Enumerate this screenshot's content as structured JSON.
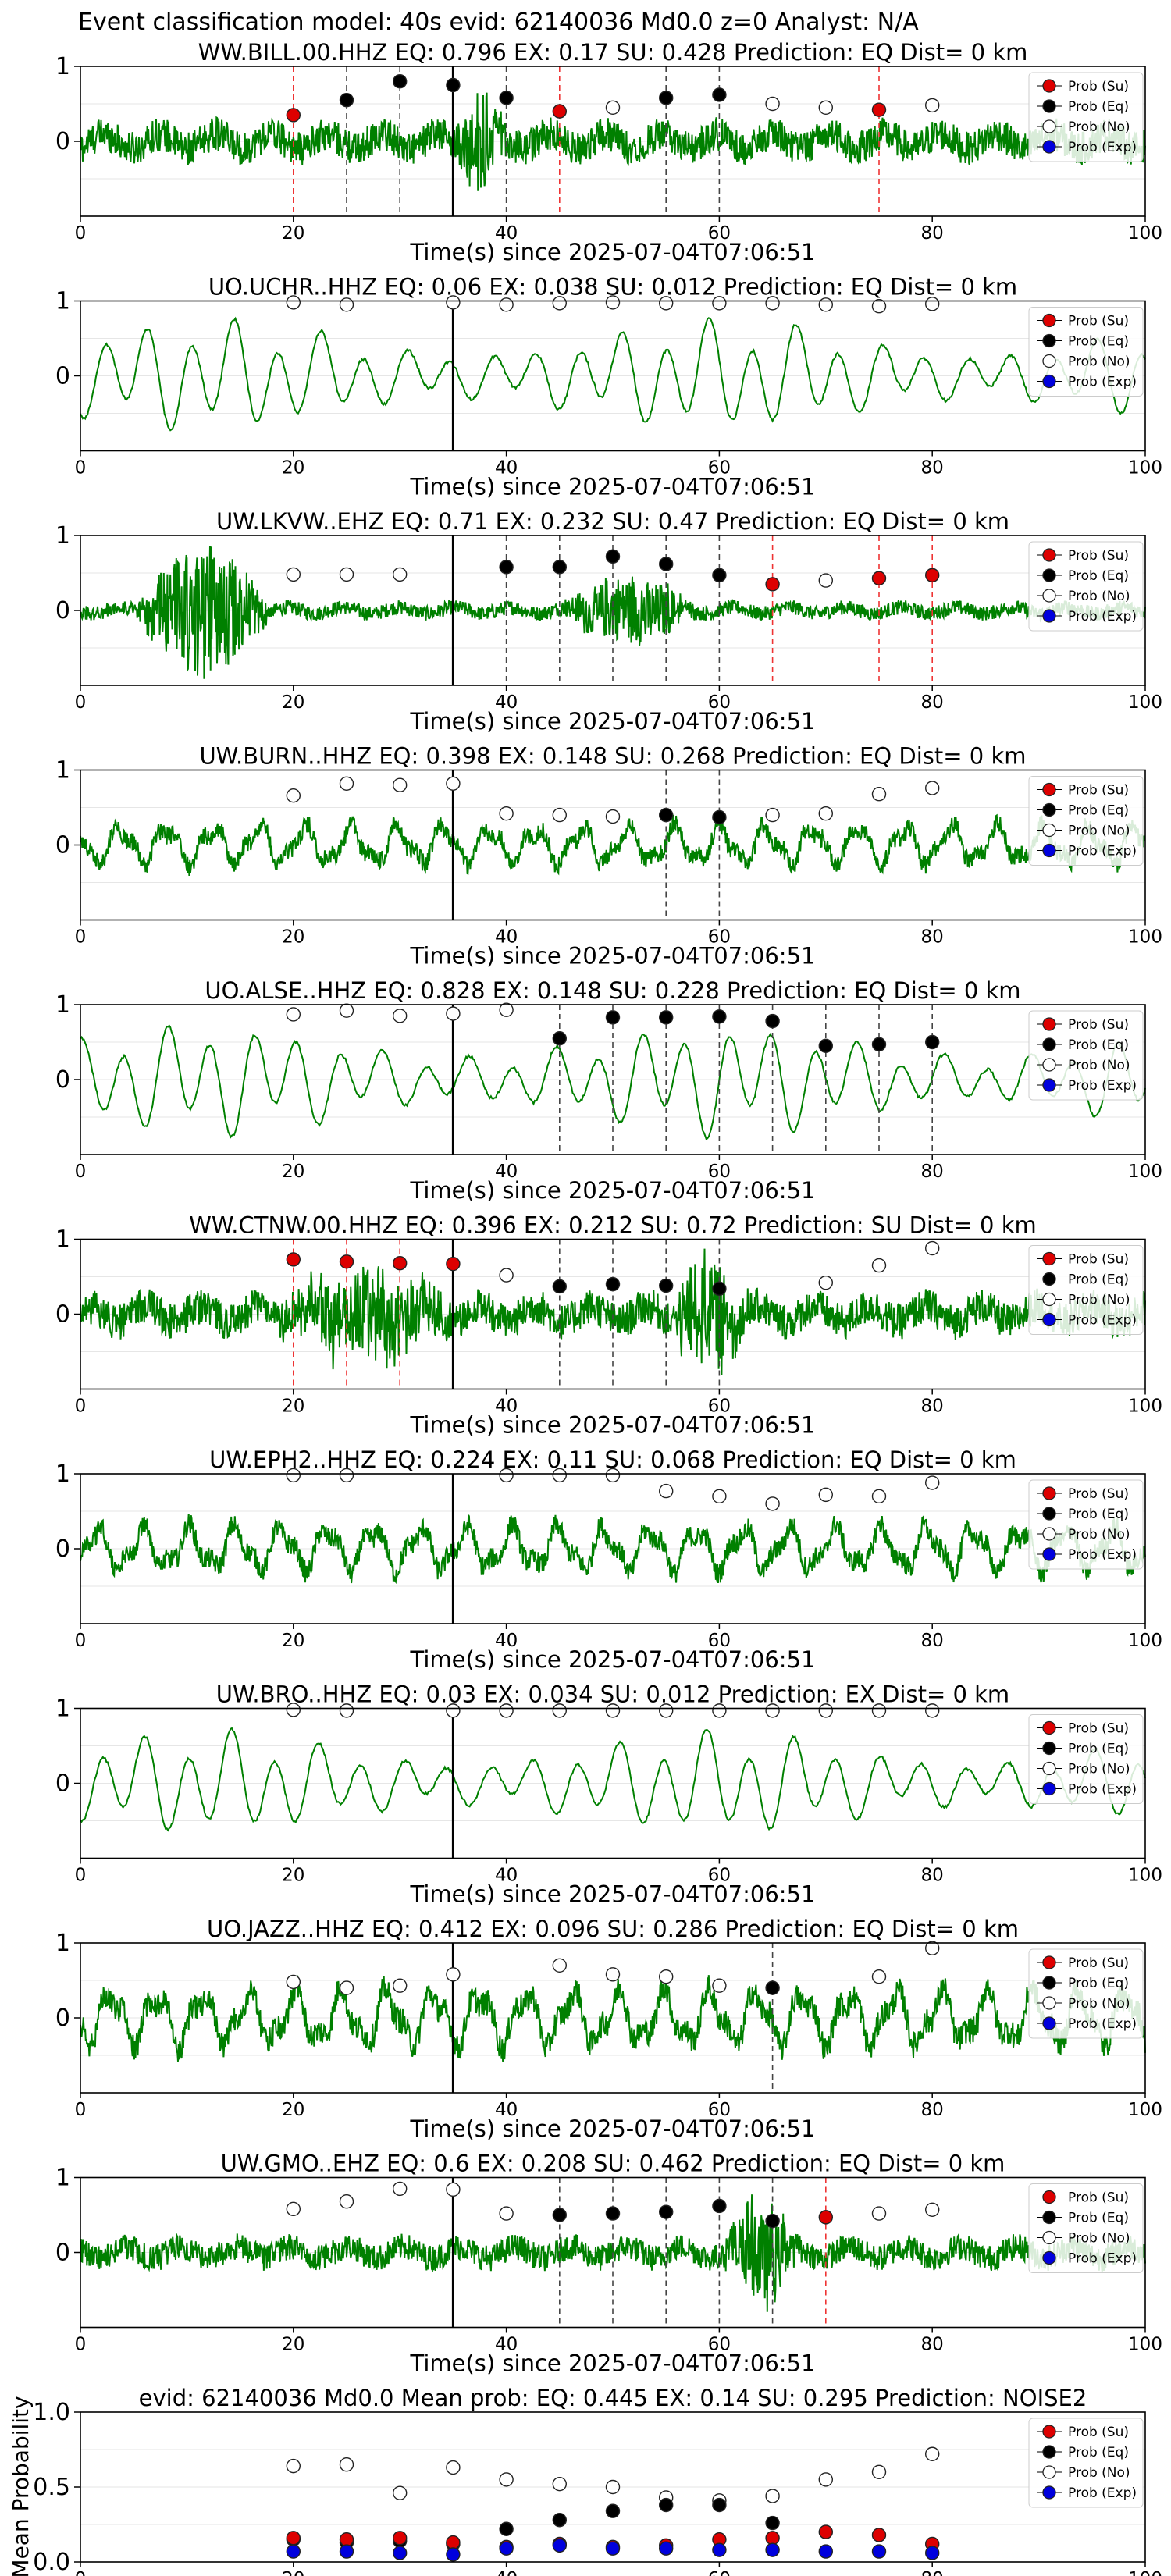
{
  "header": {
    "title": "Event classification model: 40s evid: 62140036 Md0.0 z=0 Analyst: N/A"
  },
  "legend": {
    "items": [
      "Prob (Su)",
      "Prob (Eq)",
      "Prob (No)",
      "Prob (Exp)"
    ]
  },
  "colors": {
    "su": "#dd0000",
    "eq": "#000000",
    "no": "#ffffff",
    "exp": "#0000dd",
    "trace": "#008000"
  },
  "xlabel": "Time(s) since 2025-07-04T07:06:51",
  "xticks": [
    "0",
    "20",
    "40",
    "60",
    "80",
    "100"
  ],
  "yticks_trace": [
    "1",
    "0"
  ],
  "chart_data": [
    {
      "type": "line",
      "title": "WW.BILL.00.HHZ   EQ: 0.796  EX: 0.17  SU: 0.428   Prediction: EQ    Dist= 0 km",
      "xlim": [
        0,
        100
      ],
      "ylim": [
        -1,
        1
      ],
      "pick": 35,
      "points": [
        {
          "x": 20,
          "y": 0.35,
          "c": "su"
        },
        {
          "x": 25,
          "y": 0.55,
          "c": "eq"
        },
        {
          "x": 30,
          "y": 0.8,
          "c": "eq"
        },
        {
          "x": 35,
          "y": 0.75,
          "c": "eq"
        },
        {
          "x": 40,
          "y": 0.58,
          "c": "eq"
        },
        {
          "x": 45,
          "y": 0.4,
          "c": "su"
        },
        {
          "x": 50,
          "y": 0.45,
          "c": "no"
        },
        {
          "x": 55,
          "y": 0.58,
          "c": "eq"
        },
        {
          "x": 60,
          "y": 0.62,
          "c": "eq"
        },
        {
          "x": 65,
          "y": 0.5,
          "c": "no"
        },
        {
          "x": 70,
          "y": 0.45,
          "c": "no"
        },
        {
          "x": 75,
          "y": 0.42,
          "c": "su"
        },
        {
          "x": 80,
          "y": 0.48,
          "c": "no"
        }
      ],
      "waveform": {
        "style": "noisy",
        "amp": 0.28,
        "burst": [
          35,
          40,
          0.6
        ]
      }
    },
    {
      "type": "line",
      "title": "UO.UCHR..HHZ   EQ: 0.06  EX: 0.038  SU: 0.012   Prediction: EQ    Dist= 0 km",
      "xlim": [
        0,
        100
      ],
      "ylim": [
        -1,
        1
      ],
      "pick": 35,
      "points": [
        {
          "x": 20,
          "y": 0.98,
          "c": "no"
        },
        {
          "x": 25,
          "y": 0.95,
          "c": "no"
        },
        {
          "x": 35,
          "y": 0.98,
          "c": "no"
        },
        {
          "x": 40,
          "y": 0.95,
          "c": "no"
        },
        {
          "x": 45,
          "y": 0.97,
          "c": "no"
        },
        {
          "x": 50,
          "y": 0.98,
          "c": "no"
        },
        {
          "x": 55,
          "y": 0.97,
          "c": "no"
        },
        {
          "x": 60,
          "y": 0.97,
          "c": "no"
        },
        {
          "x": 65,
          "y": 0.97,
          "c": "no"
        },
        {
          "x": 70,
          "y": 0.95,
          "c": "no"
        },
        {
          "x": 75,
          "y": 0.93,
          "c": "no"
        },
        {
          "x": 80,
          "y": 0.96,
          "c": "no"
        }
      ],
      "waveform": {
        "style": "smooth",
        "amp": 0.75
      }
    },
    {
      "type": "line",
      "title": "UW.LKVW..EHZ   EQ: 0.71  EX: 0.232  SU: 0.47   Prediction: EQ    Dist= 0 km",
      "xlim": [
        0,
        100
      ],
      "ylim": [
        -1,
        1
      ],
      "pick": 35,
      "points": [
        {
          "x": 20,
          "y": 0.48,
          "c": "no"
        },
        {
          "x": 25,
          "y": 0.48,
          "c": "no"
        },
        {
          "x": 30,
          "y": 0.48,
          "c": "no"
        },
        {
          "x": 40,
          "y": 0.58,
          "c": "eq"
        },
        {
          "x": 45,
          "y": 0.58,
          "c": "eq"
        },
        {
          "x": 50,
          "y": 0.72,
          "c": "eq"
        },
        {
          "x": 55,
          "y": 0.62,
          "c": "eq"
        },
        {
          "x": 60,
          "y": 0.47,
          "c": "eq"
        },
        {
          "x": 65,
          "y": 0.35,
          "c": "su"
        },
        {
          "x": 70,
          "y": 0.4,
          "c": "no"
        },
        {
          "x": 75,
          "y": 0.43,
          "c": "su"
        },
        {
          "x": 80,
          "y": 0.47,
          "c": "su"
        }
      ],
      "waveform": {
        "style": "noisy",
        "amp": 0.12,
        "burst": [
          5,
          18,
          0.9
        ],
        "burst2": [
          45,
          58,
          0.45
        ]
      }
    },
    {
      "type": "line",
      "title": "UW.BURN..HHZ   EQ: 0.398  EX: 0.148  SU: 0.268   Prediction: EQ    Dist= 0 km",
      "xlim": [
        0,
        100
      ],
      "ylim": [
        -1,
        1
      ],
      "pick": 35,
      "points": [
        {
          "x": 20,
          "y": 0.66,
          "c": "no"
        },
        {
          "x": 25,
          "y": 0.82,
          "c": "no"
        },
        {
          "x": 30,
          "y": 0.8,
          "c": "no"
        },
        {
          "x": 35,
          "y": 0.82,
          "c": "no"
        },
        {
          "x": 40,
          "y": 0.42,
          "c": "no"
        },
        {
          "x": 45,
          "y": 0.4,
          "c": "no"
        },
        {
          "x": 50,
          "y": 0.38,
          "c": "no"
        },
        {
          "x": 55,
          "y": 0.4,
          "c": "eq"
        },
        {
          "x": 60,
          "y": 0.37,
          "c": "eq"
        },
        {
          "x": 65,
          "y": 0.4,
          "c": "no"
        },
        {
          "x": 70,
          "y": 0.42,
          "c": "no"
        },
        {
          "x": 75,
          "y": 0.68,
          "c": "no"
        },
        {
          "x": 80,
          "y": 0.76,
          "c": "no"
        }
      ],
      "waveform": {
        "style": "mixed",
        "amp": 0.35
      }
    },
    {
      "type": "line",
      "title": "UO.ALSE..HHZ   EQ: 0.828  EX: 0.148  SU: 0.228   Prediction: EQ    Dist= 0 km",
      "xlim": [
        0,
        100
      ],
      "ylim": [
        -1,
        1
      ],
      "pick": 35,
      "points": [
        {
          "x": 20,
          "y": 0.87,
          "c": "no"
        },
        {
          "x": 25,
          "y": 0.92,
          "c": "no"
        },
        {
          "x": 30,
          "y": 0.85,
          "c": "no"
        },
        {
          "x": 35,
          "y": 0.88,
          "c": "no"
        },
        {
          "x": 40,
          "y": 0.93,
          "c": "no"
        },
        {
          "x": 45,
          "y": 0.55,
          "c": "eq"
        },
        {
          "x": 50,
          "y": 0.83,
          "c": "eq"
        },
        {
          "x": 55,
          "y": 0.83,
          "c": "eq"
        },
        {
          "x": 60,
          "y": 0.84,
          "c": "eq"
        },
        {
          "x": 65,
          "y": 0.78,
          "c": "eq"
        },
        {
          "x": 70,
          "y": 0.45,
          "c": "eq"
        },
        {
          "x": 75,
          "y": 0.47,
          "c": "eq"
        },
        {
          "x": 80,
          "y": 0.5,
          "c": "eq"
        }
      ],
      "waveform": {
        "style": "smooth",
        "amp": 0.75
      }
    },
    {
      "type": "line",
      "title": "WW.CTNW.00.HHZ   EQ: 0.396  EX: 0.212  SU: 0.72   Prediction: SU    Dist= 0 km",
      "xlim": [
        0,
        100
      ],
      "ylim": [
        -1,
        1
      ],
      "pick": 35,
      "points": [
        {
          "x": 20,
          "y": 0.73,
          "c": "su"
        },
        {
          "x": 25,
          "y": 0.7,
          "c": "su"
        },
        {
          "x": 30,
          "y": 0.68,
          "c": "su"
        },
        {
          "x": 35,
          "y": 0.67,
          "c": "su"
        },
        {
          "x": 40,
          "y": 0.52,
          "c": "no"
        },
        {
          "x": 45,
          "y": 0.37,
          "c": "eq"
        },
        {
          "x": 50,
          "y": 0.4,
          "c": "eq"
        },
        {
          "x": 55,
          "y": 0.38,
          "c": "eq"
        },
        {
          "x": 60,
          "y": 0.34,
          "c": "eq"
        },
        {
          "x": 70,
          "y": 0.42,
          "c": "no"
        },
        {
          "x": 75,
          "y": 0.65,
          "c": "no"
        },
        {
          "x": 80,
          "y": 0.88,
          "c": "no"
        }
      ],
      "waveform": {
        "style": "noisy",
        "amp": 0.3,
        "burst": [
          18,
          35,
          0.55
        ],
        "burst2": [
          55,
          63,
          0.7
        ]
      }
    },
    {
      "type": "line",
      "title": "UW.EPH2..HHZ   EQ: 0.224  EX: 0.11  SU: 0.068   Prediction: EQ    Dist= 0 km",
      "xlim": [
        0,
        100
      ],
      "ylim": [
        -1,
        1
      ],
      "pick": 35,
      "points": [
        {
          "x": 20,
          "y": 0.98,
          "c": "no"
        },
        {
          "x": 25,
          "y": 0.98,
          "c": "no"
        },
        {
          "x": 40,
          "y": 0.98,
          "c": "no"
        },
        {
          "x": 45,
          "y": 0.98,
          "c": "no"
        },
        {
          "x": 50,
          "y": 0.98,
          "c": "no"
        },
        {
          "x": 55,
          "y": 0.77,
          "c": "no"
        },
        {
          "x": 60,
          "y": 0.7,
          "c": "no"
        },
        {
          "x": 65,
          "y": 0.6,
          "c": "no"
        },
        {
          "x": 70,
          "y": 0.72,
          "c": "no"
        },
        {
          "x": 75,
          "y": 0.7,
          "c": "no"
        },
        {
          "x": 80,
          "y": 0.88,
          "c": "no"
        }
      ],
      "waveform": {
        "style": "mixed",
        "amp": 0.4
      }
    },
    {
      "type": "line",
      "title": "UW.BRO..HHZ   EQ: 0.03  EX: 0.034  SU: 0.012   Prediction: EX    Dist= 0 km",
      "xlim": [
        0,
        100
      ],
      "ylim": [
        -1,
        1
      ],
      "pick": 35,
      "points": [
        {
          "x": 20,
          "y": 0.98,
          "c": "no"
        },
        {
          "x": 25,
          "y": 0.97,
          "c": "no"
        },
        {
          "x": 35,
          "y": 0.97,
          "c": "no"
        },
        {
          "x": 40,
          "y": 0.97,
          "c": "no"
        },
        {
          "x": 45,
          "y": 0.97,
          "c": "no"
        },
        {
          "x": 50,
          "y": 0.97,
          "c": "no"
        },
        {
          "x": 55,
          "y": 0.97,
          "c": "no"
        },
        {
          "x": 60,
          "y": 0.97,
          "c": "no"
        },
        {
          "x": 65,
          "y": 0.97,
          "c": "no"
        },
        {
          "x": 70,
          "y": 0.97,
          "c": "no"
        },
        {
          "x": 75,
          "y": 0.97,
          "c": "no"
        },
        {
          "x": 80,
          "y": 0.97,
          "c": "no"
        }
      ],
      "waveform": {
        "style": "smooth",
        "amp": 0.7
      }
    },
    {
      "type": "line",
      "title": "UO.JAZZ..HHZ   EQ: 0.412  EX: 0.096  SU: 0.286   Prediction: EQ    Dist= 0 km",
      "xlim": [
        0,
        100
      ],
      "ylim": [
        -1,
        1
      ],
      "pick": 35,
      "points": [
        {
          "x": 20,
          "y": 0.48,
          "c": "no"
        },
        {
          "x": 25,
          "y": 0.4,
          "c": "no"
        },
        {
          "x": 30,
          "y": 0.43,
          "c": "no"
        },
        {
          "x": 35,
          "y": 0.58,
          "c": "no"
        },
        {
          "x": 45,
          "y": 0.7,
          "c": "no"
        },
        {
          "x": 50,
          "y": 0.58,
          "c": "no"
        },
        {
          "x": 55,
          "y": 0.55,
          "c": "no"
        },
        {
          "x": 60,
          "y": 0.43,
          "c": "no"
        },
        {
          "x": 65,
          "y": 0.4,
          "c": "eq"
        },
        {
          "x": 75,
          "y": 0.55,
          "c": "no"
        },
        {
          "x": 80,
          "y": 0.93,
          "c": "no"
        }
      ],
      "waveform": {
        "style": "mixed",
        "amp": 0.5
      }
    },
    {
      "type": "line",
      "title": "UW.GMO..EHZ   EQ: 0.6  EX: 0.208  SU: 0.462   Prediction: EQ    Dist= 0 km",
      "xlim": [
        0,
        100
      ],
      "ylim": [
        -1,
        1
      ],
      "pick": 35,
      "points": [
        {
          "x": 20,
          "y": 0.58,
          "c": "no"
        },
        {
          "x": 25,
          "y": 0.68,
          "c": "no"
        },
        {
          "x": 30,
          "y": 0.85,
          "c": "no"
        },
        {
          "x": 35,
          "y": 0.84,
          "c": "no"
        },
        {
          "x": 40,
          "y": 0.52,
          "c": "no"
        },
        {
          "x": 45,
          "y": 0.5,
          "c": "eq"
        },
        {
          "x": 50,
          "y": 0.52,
          "c": "eq"
        },
        {
          "x": 55,
          "y": 0.54,
          "c": "eq"
        },
        {
          "x": 60,
          "y": 0.62,
          "c": "eq"
        },
        {
          "x": 65,
          "y": 0.42,
          "c": "eq"
        },
        {
          "x": 70,
          "y": 0.47,
          "c": "su"
        },
        {
          "x": 75,
          "y": 0.52,
          "c": "no"
        },
        {
          "x": 80,
          "y": 0.57,
          "c": "no"
        }
      ],
      "waveform": {
        "style": "noisy",
        "amp": 0.22,
        "burst": [
          60,
          68,
          0.65
        ]
      }
    },
    {
      "type": "scatter",
      "title": "evid: 62140036  Md0.0   Mean prob:   EQ: 0.445  EX: 0.14  SU: 0.295   Prediction: NOISE2",
      "xlim": [
        0,
        100
      ],
      "ylim": [
        0,
        1
      ],
      "ylabel": "Mean Probability",
      "yticks": [
        "1.0",
        "0.5",
        "0.0"
      ],
      "x": [
        20,
        25,
        30,
        35,
        40,
        45,
        50,
        55,
        60,
        65,
        70,
        75,
        80
      ],
      "series": [
        {
          "key": "no",
          "values": [
            0.64,
            0.65,
            0.46,
            0.63,
            0.55,
            0.52,
            0.5,
            0.43,
            0.41,
            0.44,
            0.55,
            0.6,
            0.72
          ]
        },
        {
          "key": "eq",
          "values": [
            0.15,
            0.13,
            0.14,
            0.12,
            0.22,
            0.28,
            0.34,
            0.38,
            0.38,
            0.26,
            0.0,
            0.0,
            0.0
          ]
        },
        {
          "key": "su",
          "values": [
            0.16,
            0.15,
            0.16,
            0.13,
            0.1,
            0.12,
            0.1,
            0.11,
            0.15,
            0.16,
            0.2,
            0.18,
            0.12
          ]
        },
        {
          "key": "exp",
          "values": [
            0.07,
            0.07,
            0.06,
            0.05,
            0.09,
            0.11,
            0.09,
            0.09,
            0.08,
            0.08,
            0.07,
            0.07,
            0.06
          ]
        }
      ]
    }
  ]
}
